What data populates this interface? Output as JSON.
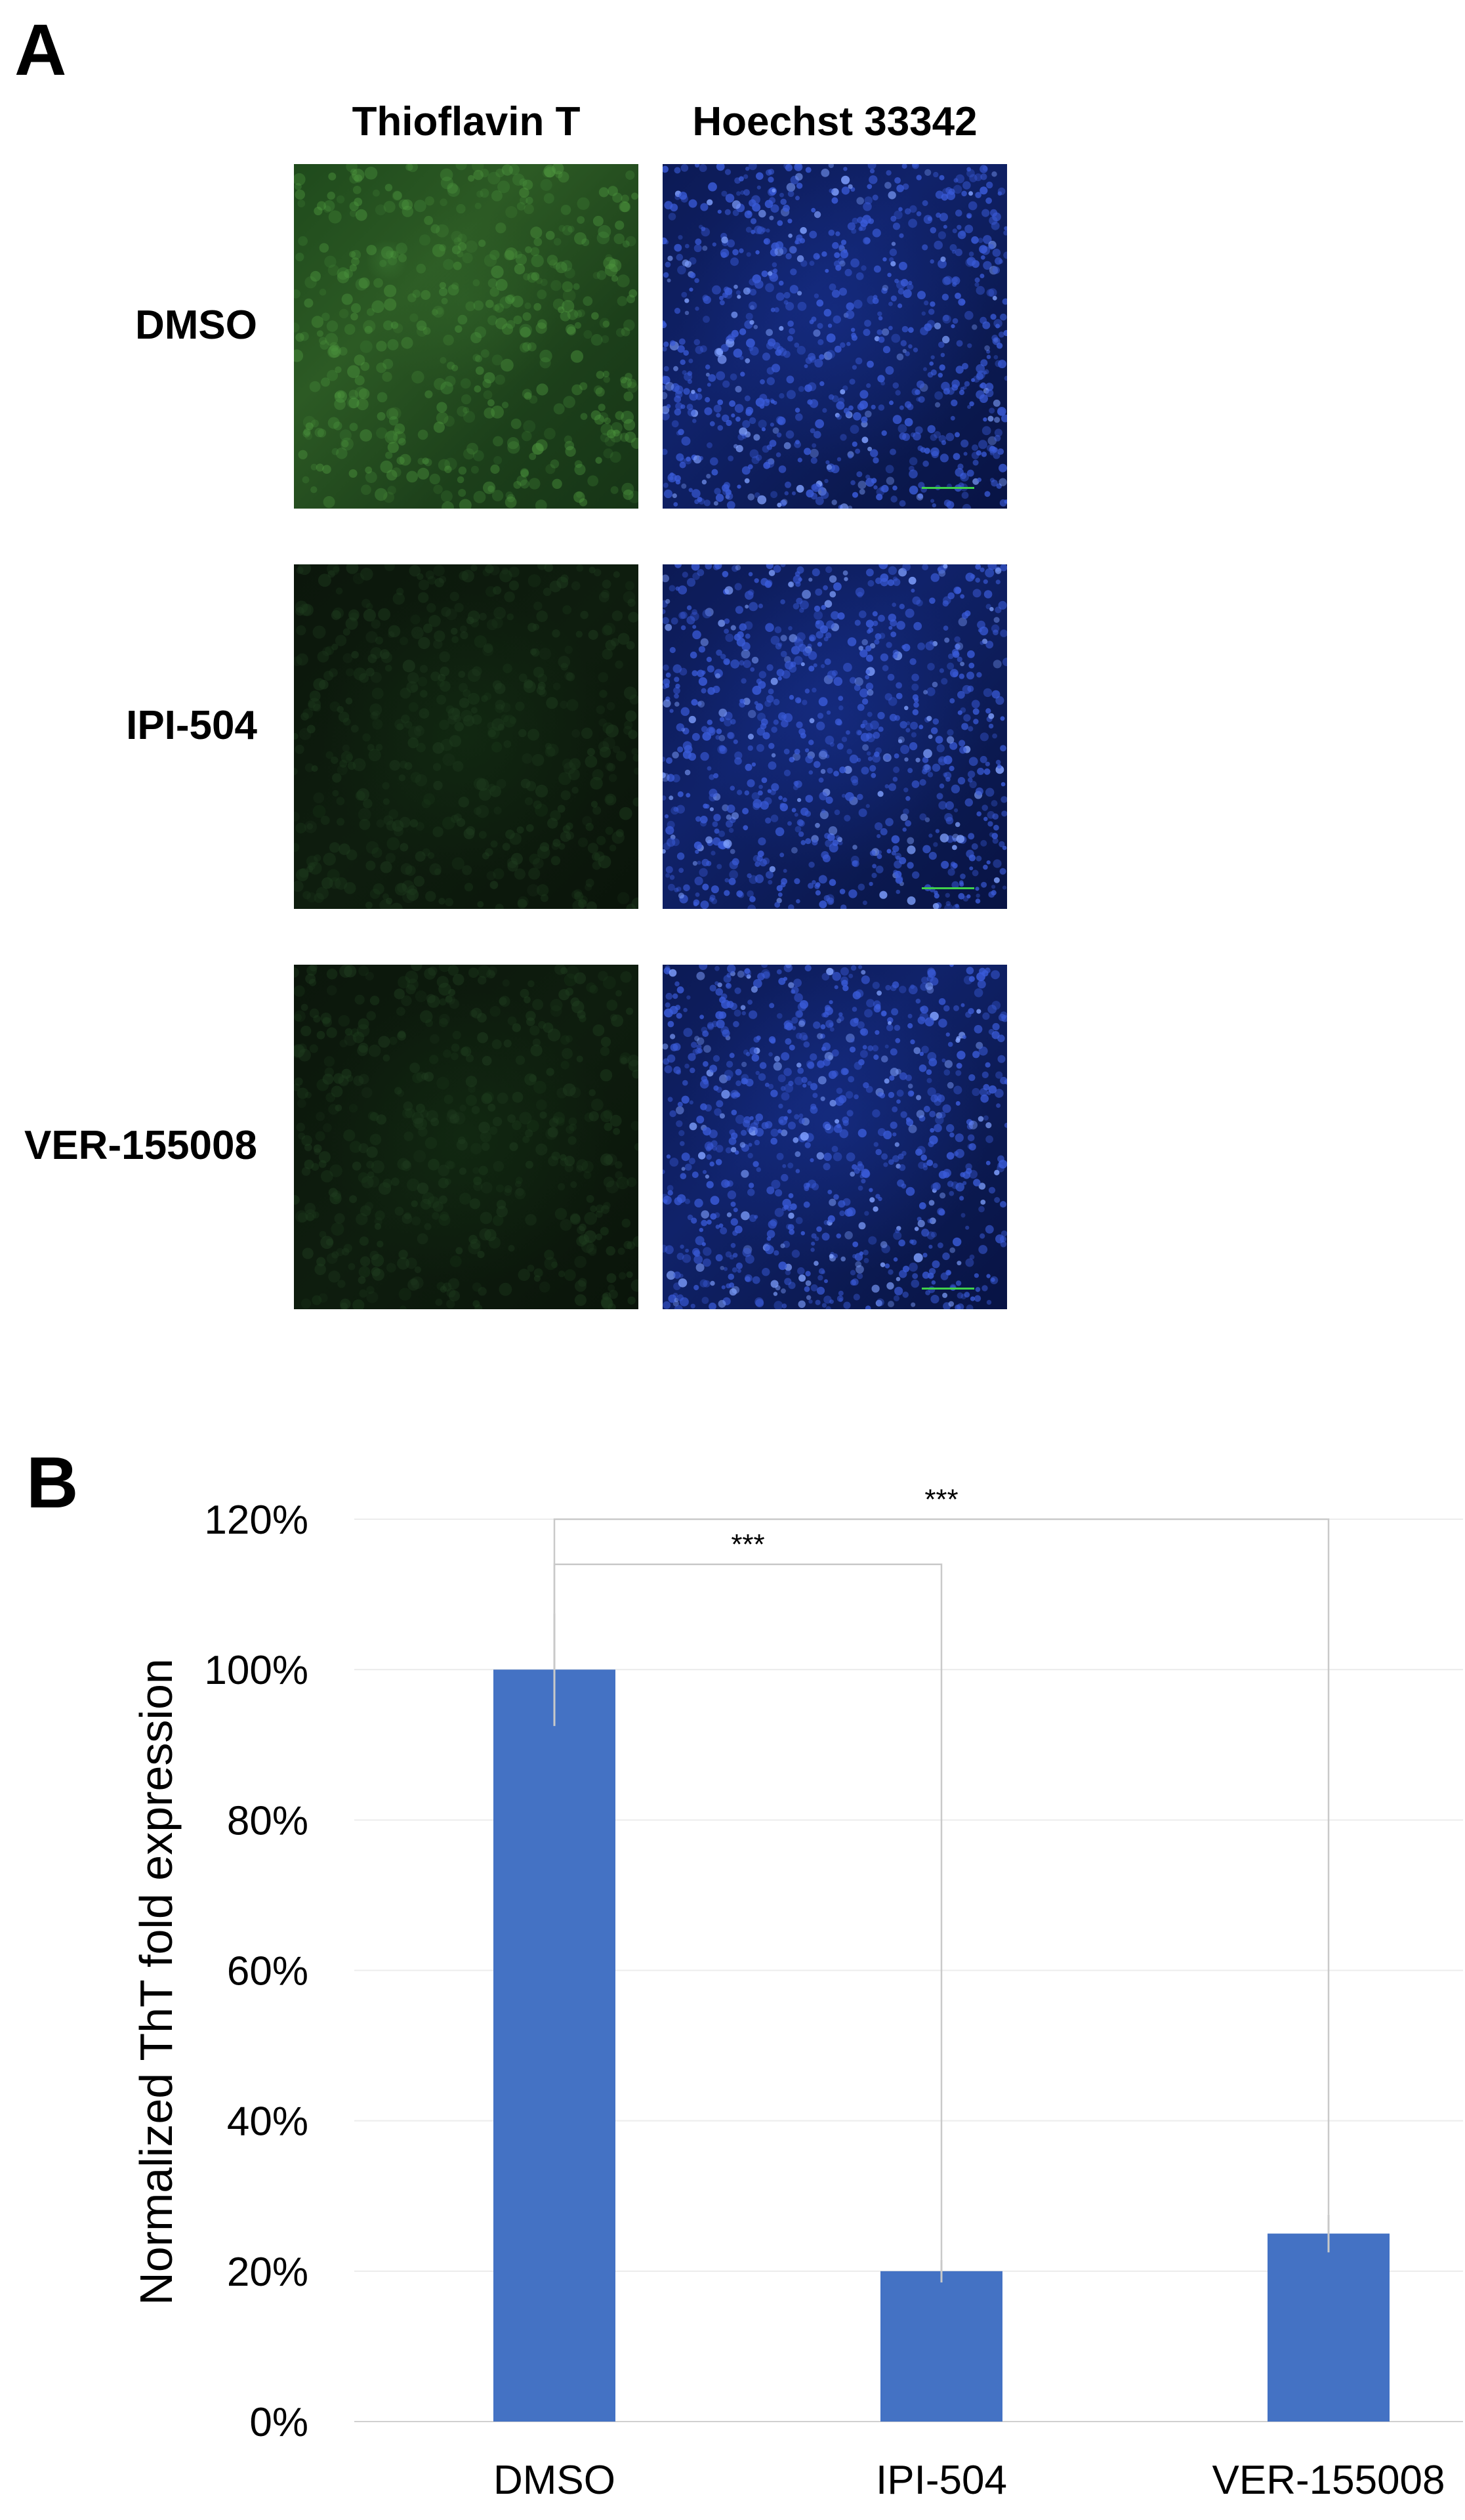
{
  "panel_a": {
    "letter": "A",
    "columns": [
      "Thioflavin T",
      "Hoechst 33342"
    ],
    "rows": [
      "DMSO",
      "IPI-504",
      "VER-155008"
    ]
  },
  "panel_b": {
    "letter": "B"
  },
  "chart_data": {
    "type": "bar",
    "categories": [
      "DMSO",
      "IPI-504",
      "VER-155008"
    ],
    "values": [
      1.0,
      0.2,
      0.25
    ],
    "errors": [
      0.075,
      0.015,
      0.025
    ],
    "ylabel": "Normalized ThT fold expression",
    "ylim": [
      0,
      1.2
    ],
    "yticks": [
      0,
      0.2,
      0.4,
      0.6,
      0.8,
      1.0,
      1.2
    ],
    "ytick_labels": [
      "0%",
      "20%",
      "40%",
      "60%",
      "80%",
      "100%",
      "120%"
    ],
    "grid": true,
    "bar_color": "#4472c4",
    "significance": [
      {
        "from": "DMSO",
        "to": "IPI-504",
        "label": "***"
      },
      {
        "from": "DMSO",
        "to": "VER-155008",
        "label": "***"
      }
    ]
  }
}
